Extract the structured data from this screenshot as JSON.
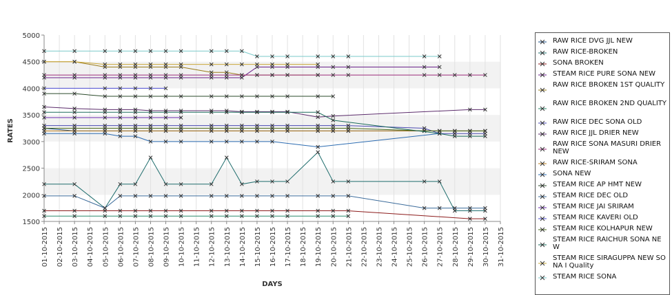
{
  "chart_data": {
    "type": "line",
    "title": "",
    "xlabel": "DAYS",
    "ylabel": "RATES",
    "ylim": [
      1500,
      5000
    ],
    "yticks": [
      1500,
      2000,
      2500,
      3000,
      3500,
      4000,
      4500,
      5000
    ],
    "grid": "horizontal alternating bands",
    "legend_position": "right",
    "categories": [
      "01-10-2015",
      "02-10-2015",
      "03-10-2015",
      "04-10-2015",
      "05-10-2015",
      "06-10-2015",
      "07-10-2015",
      "08-10-2015",
      "09-10-2015",
      "10-10-2015",
      "11-10-2015",
      "12-10-2015",
      "13-10-2015",
      "14-10-2015",
      "15-10-2015",
      "16-10-2015",
      "17-10-2015",
      "18-10-2015",
      "19-10-2015",
      "20-10-2015",
      "21-10-2015",
      "22-10-2015",
      "23-10-2015",
      "24-10-2015",
      "25-10-2015",
      "26-10-2015",
      "27-10-2015",
      "28-10-2015",
      "29-10-2015",
      "30-10-2015",
      "31-10-2015"
    ],
    "series": [
      {
        "name": "RAW RICE DVG JJL NEW",
        "color": "#1a4f8a",
        "values": [
          3250,
          null,
          3200,
          null,
          3200,
          3200,
          3200,
          3200,
          3200,
          3200,
          null,
          3200,
          3200,
          3200,
          3200,
          3200,
          3200,
          null,
          3200,
          3200,
          3200,
          null,
          null,
          null,
          null,
          3200,
          3200,
          3200,
          3200,
          3200,
          null
        ]
      },
      {
        "name": "RAW RICE-BROKEN",
        "color": "#1f6d6d",
        "values": [
          2200,
          null,
          2200,
          null,
          1750,
          2200,
          2200,
          2700,
          2200,
          2200,
          null,
          2200,
          2700,
          2200,
          2250,
          2250,
          2250,
          null,
          2800,
          2250,
          2250,
          null,
          null,
          null,
          null,
          2250,
          2250,
          1700,
          1700,
          1700,
          null
        ]
      },
      {
        "name": "SONA BROKEN",
        "color": "#8b1a1a",
        "values": [
          1700,
          null,
          1700,
          null,
          1700,
          1700,
          1700,
          1700,
          1700,
          1700,
          null,
          1700,
          1700,
          1700,
          1700,
          1700,
          1700,
          null,
          1700,
          1700,
          1700,
          null,
          null,
          null,
          null,
          null,
          null,
          null,
          1550,
          1550,
          null
        ]
      },
      {
        "name": "STEAM RICE PURE SONA NEW",
        "color": "#6a1f8a",
        "values": [
          4200,
          null,
          4200,
          null,
          4200,
          4200,
          4200,
          4200,
          4200,
          4200,
          null,
          4200,
          4200,
          4200,
          4400,
          4400,
          4400,
          null,
          4400,
          4400,
          4400,
          null,
          null,
          null,
          null,
          4400,
          4400,
          null,
          null,
          null,
          null
        ]
      },
      {
        "name": "RAW RICE BROKEN 1ST QUALITY",
        "color": "#9a7b1a",
        "values": [
          4500,
          null,
          4500,
          null,
          4400,
          4400,
          4400,
          4400,
          4400,
          4400,
          null,
          4300,
          4300,
          4250,
          4250,
          4250,
          4250,
          null,
          4250,
          null,
          null,
          null,
          null,
          null,
          null,
          null,
          null,
          null,
          null,
          null,
          null
        ]
      },
      {
        "name": "RAW RICE BROKEN 2ND QUALITY",
        "color": "#2a8a6a",
        "values": [
          1600,
          null,
          1600,
          null,
          1600,
          1600,
          1600,
          1600,
          1600,
          1600,
          null,
          1600,
          1600,
          1600,
          1600,
          1600,
          1600,
          null,
          1600,
          1600,
          1600,
          null,
          null,
          null,
          null,
          null,
          null,
          null,
          null,
          null,
          null
        ]
      },
      {
        "name": "RAW RICE DEC SONA OLD",
        "color": "#4a4ab0",
        "values": [
          3300,
          null,
          3300,
          null,
          3300,
          3300,
          3300,
          3300,
          3300,
          3300,
          null,
          3300,
          3300,
          3300,
          3300,
          3300,
          3300,
          null,
          3300,
          3300,
          3300,
          null,
          null,
          null,
          null,
          3250,
          3150,
          3150,
          3150,
          3150,
          null
        ]
      },
      {
        "name": "RAW RICE JJL DRIER NEW",
        "color": "#5a2a6a",
        "values": [
          3650,
          null,
          3620,
          null,
          3600,
          3600,
          3600,
          3580,
          3580,
          3580,
          null,
          3580,
          3580,
          3560,
          3560,
          3560,
          3560,
          null,
          3460,
          3480,
          null,
          null,
          null,
          null,
          null,
          null,
          null,
          null,
          3600,
          3600,
          null
        ]
      },
      {
        "name": "RAW RICE SONA MASURI DRIER NEW",
        "color": "#9a2a7a",
        "values": [
          4250,
          null,
          4250,
          null,
          4250,
          4250,
          4250,
          4250,
          4250,
          4250,
          null,
          4250,
          4250,
          4250,
          4250,
          4250,
          4250,
          null,
          4250,
          4250,
          4250,
          null,
          null,
          null,
          null,
          4250,
          4250,
          4250,
          4250,
          4250,
          null
        ]
      },
      {
        "name": "RAW RICE-SRIRAM SONA",
        "color": "#b87a1a",
        "values": [
          3200,
          null,
          3200,
          null,
          3200,
          3200,
          3200,
          3200,
          3200,
          3200,
          null,
          3200,
          3200,
          3200,
          3200,
          3200,
          3200,
          null,
          3200,
          3200,
          3200,
          null,
          null,
          null,
          null,
          3200,
          3200,
          3200,
          3200,
          3200,
          null
        ]
      },
      {
        "name": "SONA NEW",
        "color": "#2a6ab0",
        "values": [
          3150,
          null,
          3150,
          null,
          3150,
          3100,
          3100,
          3000,
          3000,
          3000,
          null,
          3000,
          3000,
          3000,
          3000,
          3000,
          null,
          null,
          2900,
          null,
          null,
          null,
          null,
          null,
          null,
          null,
          3150,
          null,
          null,
          null,
          null
        ]
      },
      {
        "name": "STEAM RICE AP HMT NEW",
        "color": "#2a4a2a",
        "values": [
          3900,
          null,
          3900,
          null,
          3850,
          3850,
          3850,
          3850,
          3850,
          3850,
          null,
          3850,
          3850,
          3850,
          3850,
          3850,
          3850,
          null,
          3850,
          3850,
          null,
          null,
          null,
          null,
          null,
          null,
          null,
          null,
          null,
          null,
          null
        ]
      },
      {
        "name": "STEAM RICE DEC OLD",
        "color": "#3a6a9a",
        "values": [
          1980,
          null,
          1980,
          null,
          1750,
          1980,
          1980,
          1980,
          1980,
          1980,
          null,
          1980,
          1980,
          1980,
          1980,
          1980,
          1980,
          null,
          1980,
          1980,
          1980,
          null,
          null,
          null,
          null,
          1750,
          1750,
          1750,
          1750,
          1750,
          null
        ]
      },
      {
        "name": "STEAM RICE JAI SRIRAM",
        "color": "#6a2ab0",
        "values": [
          3450,
          null,
          3450,
          null,
          3450,
          3450,
          3450,
          3450,
          3450,
          3450,
          null,
          null,
          null,
          null,
          null,
          null,
          null,
          null,
          null,
          null,
          null,
          null,
          null,
          null,
          null,
          null,
          null,
          null,
          null,
          null,
          null
        ]
      },
      {
        "name": "STEAM RICE KAVERI OLD",
        "color": "#4a4ad0",
        "values": [
          4000,
          null,
          null,
          null,
          4000,
          4000,
          4000,
          4000,
          4000,
          null,
          null,
          null,
          null,
          null,
          null,
          null,
          null,
          null,
          null,
          null,
          null,
          null,
          null,
          null,
          null,
          null,
          null,
          null,
          null,
          null,
          null
        ]
      },
      {
        "name": "STEAM RICE KOLHAPUR NEW",
        "color": "#4a6a1a",
        "values": [
          3250,
          null,
          3250,
          null,
          3250,
          3250,
          3250,
          3250,
          3250,
          3250,
          null,
          3250,
          3250,
          3250,
          3250,
          3250,
          3250,
          null,
          3250,
          3250,
          3250,
          null,
          null,
          null,
          null,
          3200,
          3200,
          3200,
          3200,
          3200,
          null
        ]
      },
      {
        "name": "STEAM RICE RAICHUR SONA NEW",
        "color": "#1a6a5a",
        "values": [
          3550,
          null,
          3550,
          null,
          3550,
          3550,
          3550,
          3550,
          3550,
          3550,
          null,
          3550,
          3550,
          3550,
          3550,
          3550,
          3550,
          null,
          3550,
          3400,
          null,
          null,
          null,
          null,
          null,
          null,
          3150,
          3100,
          3100,
          3100,
          null
        ]
      },
      {
        "name": "STEAM RICE SIRAGUPPA NEW SONA I Quality",
        "color": "#caa83a",
        "values": [
          4500,
          null,
          4500,
          null,
          4450,
          4450,
          4450,
          4450,
          4450,
          4450,
          null,
          4450,
          4450,
          4450,
          4450,
          4450,
          4450,
          null,
          4450,
          null,
          null,
          null,
          null,
          null,
          null,
          null,
          null,
          null,
          null,
          null,
          null
        ]
      },
      {
        "name": "STEAM RICE SONA",
        "color": "#7acaca",
        "values": [
          4700,
          null,
          4700,
          null,
          4700,
          4700,
          4700,
          4700,
          4700,
          4700,
          null,
          4700,
          4700,
          4700,
          4600,
          4600,
          4600,
          null,
          4600,
          4600,
          4600,
          null,
          null,
          null,
          null,
          4600,
          4600,
          null,
          null,
          null,
          null
        ]
      }
    ]
  }
}
